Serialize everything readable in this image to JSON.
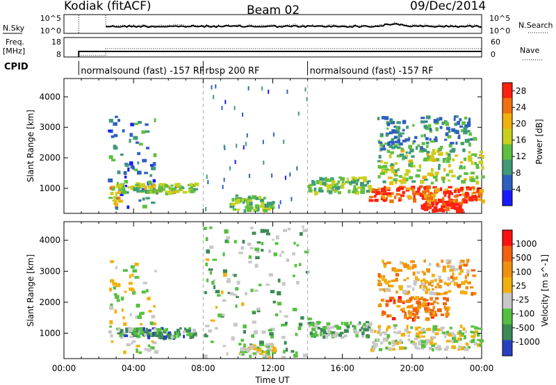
{
  "header": {
    "station": "Kodiak (fitACF)",
    "beam": "Beam 02",
    "date": "09/Dec/2014"
  },
  "left_labels": {
    "nsky": "N.Sky",
    "freq_line1": "Freq.",
    "freq_line2": "[MHz]",
    "cpid": "CPID"
  },
  "right_labels": {
    "nsearch": "N.Search",
    "nave": "Nave"
  },
  "ticks": {
    "noise_left": [
      "10^5",
      "10^0"
    ],
    "noise_right": [
      "10^5",
      "10^0"
    ],
    "freq_left": [
      "18",
      "8"
    ],
    "freq_right": [
      "60",
      "0"
    ]
  },
  "cpid_modes": [
    {
      "label": "normalsound (fast) -157 RF",
      "start": 0.85,
      "end": 8.0
    },
    {
      "label": "rbsp 200 RF",
      "start": 8.0,
      "end": 14.0
    },
    {
      "label": "normalsound (fast) -157 RF",
      "start": 14.0,
      "end": 24.0
    }
  ],
  "chart_data": [
    {
      "type": "heatmap",
      "name": "Power",
      "ylabel": "Slant Range [km]",
      "xlabel": "Time UT",
      "xlim": [
        0,
        24
      ],
      "ylim": [
        180,
        4600
      ],
      "yticks": [
        "1000",
        "2000",
        "3000",
        "4000"
      ],
      "xtick_labels": [
        "00:00",
        "04:00",
        "08:00",
        "12:00",
        "16:00",
        "20:00",
        "00:00"
      ],
      "colorbar": {
        "label": "Power [dB]",
        "ticks": [
          "4",
          "8",
          "12",
          "16",
          "20",
          "24",
          "28"
        ],
        "range": [
          0,
          30
        ],
        "colors": [
          "#1a1aff",
          "#2f5fbf",
          "#3f9a78",
          "#5fbf40",
          "#c8d020",
          "#f0b010",
          "#f07010",
          "#ff2010"
        ]
      },
      "regions": [
        {
          "t0": 2.5,
          "t1": 5.2,
          "r0": 400,
          "r1": 3400,
          "level": 0.25
        },
        {
          "t0": 2.5,
          "t1": 3.2,
          "r0": 500,
          "r1": 1300,
          "level": 0.65
        },
        {
          "t0": 3.0,
          "t1": 7.5,
          "r0": 900,
          "r1": 1200,
          "level": 0.5
        },
        {
          "t0": 14.0,
          "t1": 17.5,
          "r0": 900,
          "r1": 1400,
          "level": 0.45
        },
        {
          "t0": 17.5,
          "t1": 24.0,
          "r0": 600,
          "r1": 1100,
          "level": 0.85
        },
        {
          "t0": 20.5,
          "t1": 22.8,
          "r0": 300,
          "r1": 600,
          "level": 1.0
        },
        {
          "t0": 18.0,
          "t1": 24.0,
          "r0": 1200,
          "r1": 2300,
          "level": 0.5
        },
        {
          "t0": 18.0,
          "t1": 23.5,
          "r0": 2300,
          "r1": 3400,
          "level": 0.3
        },
        {
          "t0": 9.5,
          "t1": 12.0,
          "r0": 300,
          "r1": 800,
          "level": 0.45
        },
        {
          "t0": 8.0,
          "t1": 14.0,
          "r0": 200,
          "r1": 4500,
          "level": 0.2
        }
      ]
    },
    {
      "type": "heatmap",
      "name": "Velocity",
      "ylabel": "Slant Range [km]",
      "xlabel": "Time UT",
      "xlim": [
        0,
        24
      ],
      "ylim": [
        180,
        4600
      ],
      "yticks": [
        "1000",
        "2000",
        "3000",
        "4000"
      ],
      "xtick_labels": [
        "00:00",
        "04:00",
        "08:00",
        "12:00",
        "16:00",
        "20:00",
        "00:00"
      ],
      "colorbar": {
        "label": "Velocity [m s^-1]",
        "ticks": [
          "1000",
          "500",
          "100",
          "25",
          "-25",
          "-100",
          "-500",
          "-1000"
        ],
        "range": [
          -1000,
          1000
        ],
        "colors": [
          "#2a3fbf",
          "#3c8a55",
          "#55c040",
          "#c8c8c8",
          "#f0b010",
          "#f09010",
          "#f06010",
          "#ff1010"
        ]
      },
      "regions": [
        {
          "t0": 2.5,
          "t1": 5.2,
          "r0": 400,
          "r1": 3400,
          "level": 0.45
        },
        {
          "t0": 3.0,
          "t1": 7.5,
          "r0": 900,
          "r1": 1200,
          "level": 0.25
        },
        {
          "t0": 14.0,
          "t1": 17.5,
          "r0": 900,
          "r1": 1400,
          "level": 0.3
        },
        {
          "t0": 17.5,
          "t1": 24.0,
          "r0": 500,
          "r1": 1300,
          "level": 0.45
        },
        {
          "t0": 18.0,
          "t1": 22.0,
          "r0": 1500,
          "r1": 2200,
          "level": 0.75
        },
        {
          "t0": 18.0,
          "t1": 23.5,
          "r0": 2300,
          "r1": 3400,
          "level": 0.6
        },
        {
          "t0": 10.0,
          "t1": 12.0,
          "r0": 250,
          "r1": 700,
          "level": 0.45
        },
        {
          "t0": 8.0,
          "t1": 14.0,
          "r0": 200,
          "r1": 4500,
          "level": 0.35
        }
      ]
    }
  ]
}
